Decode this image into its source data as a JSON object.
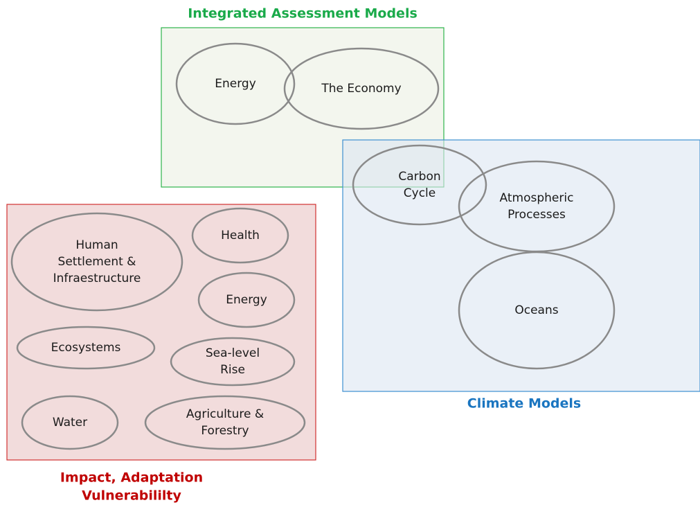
{
  "groups": [
    {
      "title": [
        "Integrated Assessment Models"
      ],
      "nodes": [
        {
          "label": [
            "Energy"
          ]
        },
        {
          "label": [
            "The Economy"
          ]
        }
      ]
    },
    {
      "title": [
        "Climate Models"
      ],
      "nodes": [
        {
          "label": [
            "Carbon",
            "Cycle"
          ]
        },
        {
          "label": [
            "Atmospheric",
            "Processes"
          ]
        },
        {
          "label": [
            "Oceans"
          ]
        }
      ]
    },
    {
      "title": [
        "Impact, Adaptation",
        "Vulnerabililty"
      ],
      "nodes": [
        {
          "label": [
            "Human",
            "Settlement &",
            "Infraestructure"
          ]
        },
        {
          "label": [
            "Health"
          ]
        },
        {
          "label": [
            "Energy"
          ]
        },
        {
          "label": [
            "Ecosystems"
          ]
        },
        {
          "label": [
            "Sea-level",
            "Rise"
          ]
        },
        {
          "label": [
            "Water"
          ]
        },
        {
          "label": [
            "Agriculture &",
            "Forestry"
          ]
        }
      ]
    }
  ]
}
